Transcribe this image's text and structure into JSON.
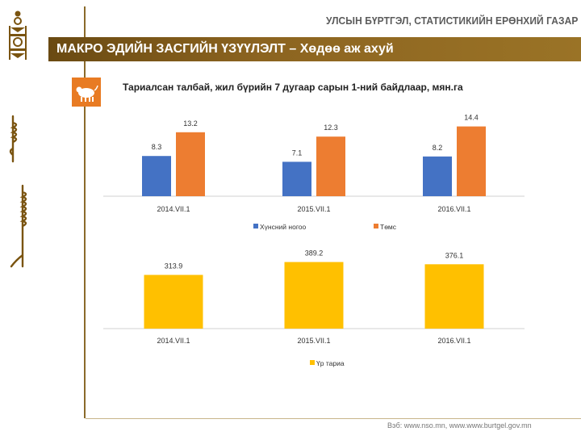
{
  "header": {
    "organization": "УЛСЫН БҮРТГЭЛ, СТАТИСТИКИЙН ЕРӨНХИЙ ГАЗАР",
    "banner_title": "МАКРО ЭДИЙН ЗАСГИЙН ҮЗҮҮЛЭЛТ – Хөдөө аж ахуй"
  },
  "category_icon": "sheep-icon",
  "colors": {
    "banner": "#8c6420",
    "icon_bg": "#e87b23",
    "potato": "#4472c4",
    "vegetables": "#ed7d31",
    "cereals": "#ffc000"
  },
  "chart_data": [
    {
      "type": "bar",
      "title": "Тариалсан талбай, жил бүрийн 7 дугаар сарын 1-ний байдлаар, мян.га",
      "categories": [
        "2014.VII.1",
        "2015.VII.1",
        "2016.VII.1"
      ],
      "series": [
        {
          "name": "Хүнсний ногоо",
          "values": [
            8.3,
            7.1,
            8.2
          ]
        },
        {
          "name": "Төмс",
          "values": [
            13.2,
            12.3,
            14.4
          ]
        }
      ],
      "ylim": [
        0,
        16
      ],
      "grid": false,
      "legend": "bottom"
    },
    {
      "type": "bar",
      "categories": [
        "2014.VII.1",
        "2015.VII.1",
        "2016.VII.1"
      ],
      "series": [
        {
          "name": "Үр тариа",
          "values": [
            313.9,
            389.2,
            376.1
          ]
        }
      ],
      "ylim": [
        0,
        420
      ],
      "grid": false,
      "legend": "bottom"
    }
  ],
  "footer": {
    "website": "Вэб: www.nso.mn, www.www.burtgel.gov.mn"
  }
}
